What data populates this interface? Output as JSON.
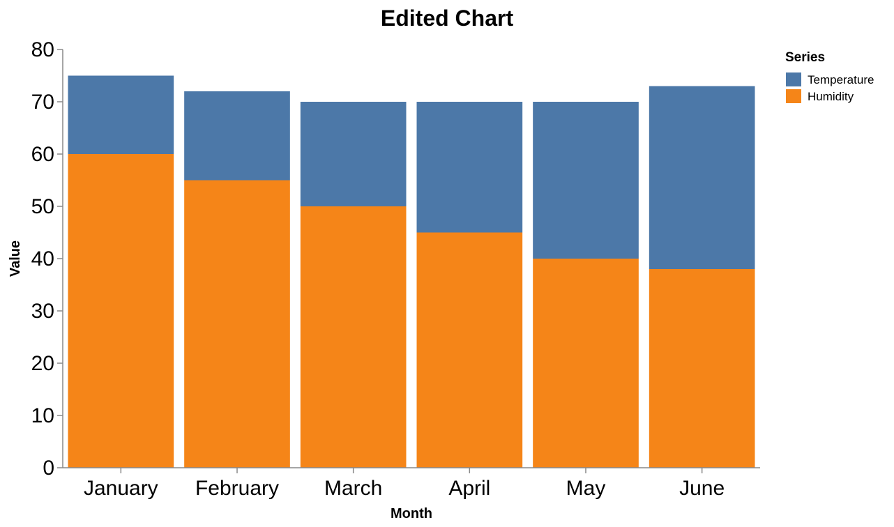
{
  "chart_data": {
    "type": "bar",
    "stacked": true,
    "title": "Edited Chart",
    "xlabel": "Month",
    "ylabel": "Value",
    "ylim": [
      0,
      80
    ],
    "yticks": [
      "0",
      "10",
      "20",
      "30",
      "40",
      "50",
      "60",
      "70",
      "80"
    ],
    "categories": [
      "January",
      "February",
      "March",
      "April",
      "May",
      "June"
    ],
    "series": [
      {
        "name": "Humidity",
        "color": "#f58518",
        "values": [
          60,
          55,
          50,
          45,
          40,
          38
        ]
      },
      {
        "name": "Temperature",
        "color": "#4c78a8",
        "values": [
          15,
          17,
          20,
          25,
          30,
          35
        ]
      }
    ],
    "legend": {
      "title": "Series",
      "position": "top-right",
      "items": [
        {
          "label": "Temperature",
          "color": "#4c78a8"
        },
        {
          "label": "Humidity",
          "color": "#f58518"
        }
      ]
    },
    "grid": false
  }
}
